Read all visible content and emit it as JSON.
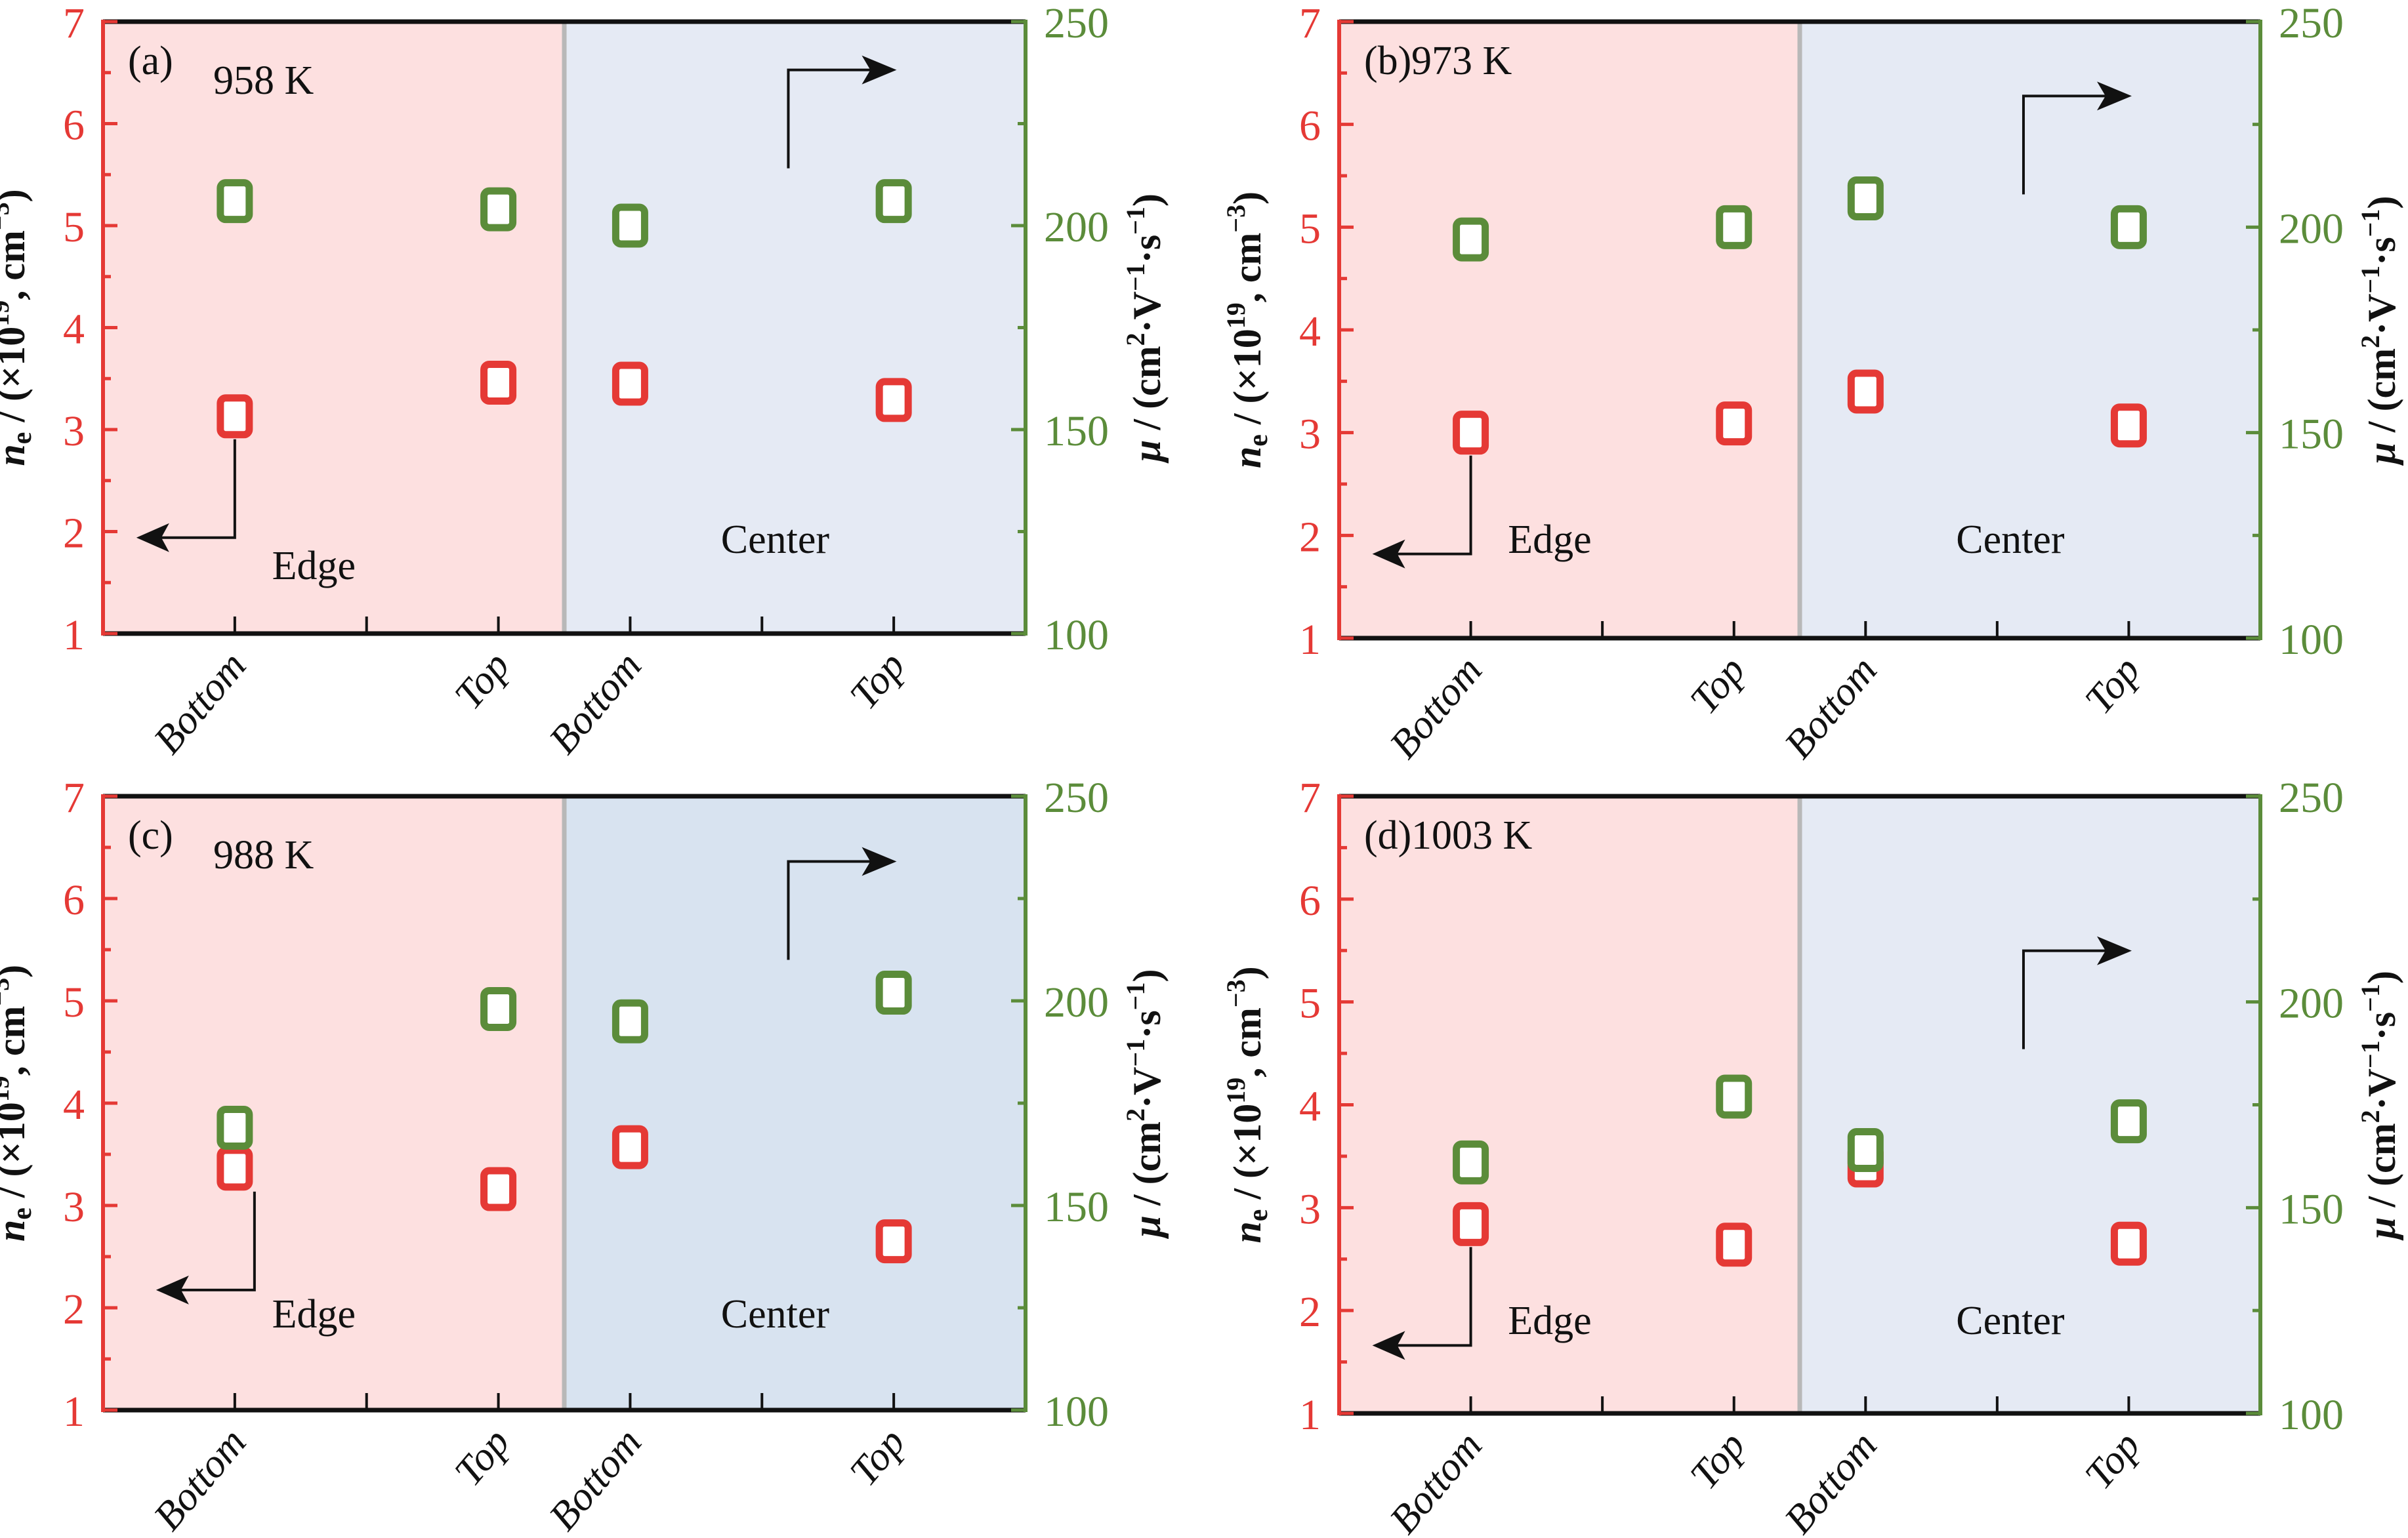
{
  "figure": {
    "colors": {
      "ne": "#e53935",
      "mu": "#5b8c3a",
      "edge_bg": "#fde0e0",
      "center_bg": "#e5eaf4",
      "center_bg_c": "#d8e3f0",
      "divider": "#b8b8b8",
      "axis": "#111111"
    },
    "arrow_glyphs": {
      "left_arrow": "←",
      "right_arrow": "→"
    }
  },
  "chart_data": [
    {
      "type": "scatter",
      "panel": "(a)",
      "title": "958 K",
      "categories": [
        "Bottom",
        "Top",
        "Bottom",
        "Top"
      ],
      "x": [
        1,
        3,
        4,
        6
      ],
      "regions": [
        {
          "label": "Edge",
          "x_range": [
            0,
            3.5
          ]
        },
        {
          "label": "Center",
          "x_range": [
            3.5,
            7
          ]
        }
      ],
      "xlim": [
        0,
        7
      ],
      "ylabel_left": "ne / (×10^19, cm^-3)",
      "ylabel_right": "μ / (cm²·V⁻¹·s⁻¹)",
      "ylim_left": [
        1,
        7
      ],
      "ylim_right": [
        100,
        250
      ],
      "yticks_left": [
        "1",
        "2",
        "3",
        "4",
        "5",
        "6",
        "7"
      ],
      "yticks_right": [
        "100",
        "150",
        "200",
        "250"
      ],
      "series": [
        {
          "name": "ne",
          "axis": "left",
          "values": [
            3.13,
            3.46,
            3.45,
            3.29
          ]
        },
        {
          "name": "μ",
          "axis": "right",
          "values": [
            206,
            204,
            200,
            206
          ]
        }
      ],
      "annotations": {
        "left_arrow_at": "Bottom (Edge)",
        "right_arrow_at": "Top (Center)"
      }
    },
    {
      "type": "scatter",
      "panel": "(b)",
      "title": "973 K",
      "categories": [
        "Bottom",
        "Top",
        "Bottom",
        "Top"
      ],
      "x": [
        1,
        3,
        4,
        6
      ],
      "regions": [
        {
          "label": "Edge",
          "x_range": [
            0,
            3.5
          ]
        },
        {
          "label": "Center",
          "x_range": [
            3.5,
            7
          ]
        }
      ],
      "xlim": [
        0,
        7
      ],
      "ylabel_left": "ne / (×10^19, cm^-3)",
      "ylabel_right": "μ / (cm²·V⁻¹·s⁻¹)",
      "ylim_left": [
        1,
        7
      ],
      "ylim_right": [
        100,
        250
      ],
      "yticks_left": [
        "1",
        "2",
        "3",
        "4",
        "5",
        "6",
        "7"
      ],
      "yticks_right": [
        "100",
        "150",
        "200",
        "250"
      ],
      "series": [
        {
          "name": "ne",
          "axis": "left",
          "values": [
            3.0,
            3.09,
            3.4,
            3.07
          ]
        },
        {
          "name": "μ",
          "axis": "right",
          "values": [
            197,
            200,
            207,
            200
          ]
        }
      ],
      "annotations": {
        "left_arrow_at": "Bottom (Edge)",
        "right_arrow_at": "Top (Center)"
      }
    },
    {
      "type": "scatter",
      "panel": "(c)",
      "title": "988 K",
      "categories": [
        "Bottom",
        "Top",
        "Bottom",
        "Top"
      ],
      "x": [
        1,
        3,
        4,
        6
      ],
      "regions": [
        {
          "label": "Edge",
          "x_range": [
            0,
            3.5
          ]
        },
        {
          "label": "Center",
          "x_range": [
            3.5,
            7
          ]
        }
      ],
      "xlim": [
        0,
        7
      ],
      "ylabel_left": "ne / (×10^19, cm^-3)",
      "ylabel_right": "μ / (cm²·V⁻¹·s⁻¹)",
      "ylim_left": [
        1,
        7
      ],
      "ylim_right": [
        100,
        250
      ],
      "yticks_left": [
        "1",
        "2",
        "3",
        "4",
        "5",
        "6",
        "7"
      ],
      "yticks_right": [
        "100",
        "150",
        "200",
        "250"
      ],
      "series": [
        {
          "name": "ne",
          "axis": "left",
          "values": [
            3.36,
            3.16,
            3.57,
            2.65
          ]
        },
        {
          "name": "μ",
          "axis": "right",
          "values": [
            169,
            198,
            195,
            202
          ]
        }
      ],
      "annotations": {
        "left_arrow_at": "Bottom (Edge)",
        "right_arrow_at": "Top (Center)"
      }
    },
    {
      "type": "scatter",
      "panel": "(d)",
      "title": "1003 K",
      "categories": [
        "Bottom",
        "Top",
        "Bottom",
        "Top"
      ],
      "x": [
        1,
        3,
        4,
        6
      ],
      "regions": [
        {
          "label": "Edge",
          "x_range": [
            0,
            3.5
          ]
        },
        {
          "label": "Center",
          "x_range": [
            3.5,
            7
          ]
        }
      ],
      "xlim": [
        0,
        7
      ],
      "ylabel_left": "ne / (×10^19, cm^-3)",
      "ylabel_right": "μ / (cm²·V⁻¹·s⁻¹)",
      "ylim_left": [
        1,
        7
      ],
      "ylim_right": [
        100,
        250
      ],
      "yticks_left": [
        "1",
        "2",
        "3",
        "4",
        "5",
        "6",
        "7"
      ],
      "yticks_right": [
        "100",
        "150",
        "200",
        "250"
      ],
      "series": [
        {
          "name": "ne",
          "axis": "left",
          "values": [
            2.84,
            2.64,
            3.41,
            2.65
          ]
        },
        {
          "name": "μ",
          "axis": "right",
          "values": [
            161,
            177,
            164,
            171
          ]
        }
      ],
      "annotations": {
        "left_arrow_at": "Bottom (Edge)",
        "right_arrow_at": "Top (Center)"
      }
    }
  ],
  "labels": {
    "ylabel_left_main": "n",
    "ylabel_left_sub": "e",
    "ylabel_left_rest": " / (×10",
    "ylabel_left_exp": "19",
    "ylabel_left_tail": ", cm",
    "ylabel_left_exp2": "−3",
    "ylabel_left_close": ")",
    "ylabel_right_mu": "μ",
    "ylabel_right_rest": " / (cm",
    "ylabel_right_exp1": "2",
    "ylabel_right_mid": "·V",
    "ylabel_right_exp2": "−1",
    "ylabel_right_mid2": "·s",
    "ylabel_right_exp3": "−1",
    "ylabel_right_close": ")"
  }
}
